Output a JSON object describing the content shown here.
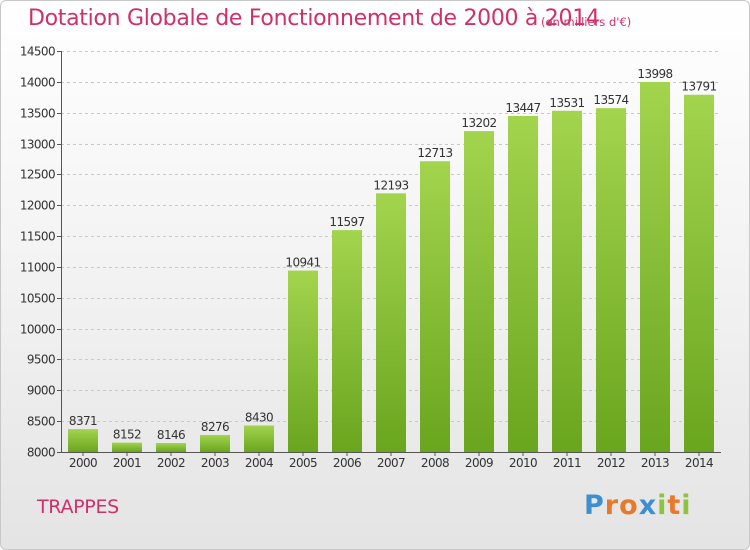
{
  "header": {
    "title": "Dotation Globale de Fonctionnement de 2000 à 2014",
    "unit": "(en milliers d'€)"
  },
  "footer": {
    "entity": "TRAPPES",
    "logo": "Proxiti"
  },
  "colors": {
    "title": "#d0306a",
    "bar_light": "#a3d44e",
    "bar_dark": "#6aa51e",
    "logo_letters": [
      "#3e8fd0",
      "#e8782a",
      "#e8782a",
      "#3e8fd0",
      "#8cc43c",
      "#e8782a",
      "#8cc43c"
    ]
  },
  "chart_data": {
    "type": "bar",
    "title": "Dotation Globale de Fonctionnement de 2000 à 2014",
    "subtitle": "(en milliers d'€)",
    "categories": [
      "2000",
      "2001",
      "2002",
      "2003",
      "2004",
      "2005",
      "2006",
      "2007",
      "2008",
      "2009",
      "2010",
      "2011",
      "2012",
      "2013",
      "2014"
    ],
    "values": [
      8371,
      8152,
      8146,
      8276,
      8430,
      10941,
      11597,
      12193,
      12713,
      13202,
      13447,
      13531,
      13574,
      13998,
      13791
    ],
    "ylim": [
      8000,
      14500
    ],
    "yticks": [
      8000,
      8500,
      9000,
      9500,
      10000,
      10500,
      11000,
      11500,
      12000,
      12500,
      13000,
      13500,
      14000,
      14500
    ],
    "grid": true,
    "data_labels": true
  }
}
